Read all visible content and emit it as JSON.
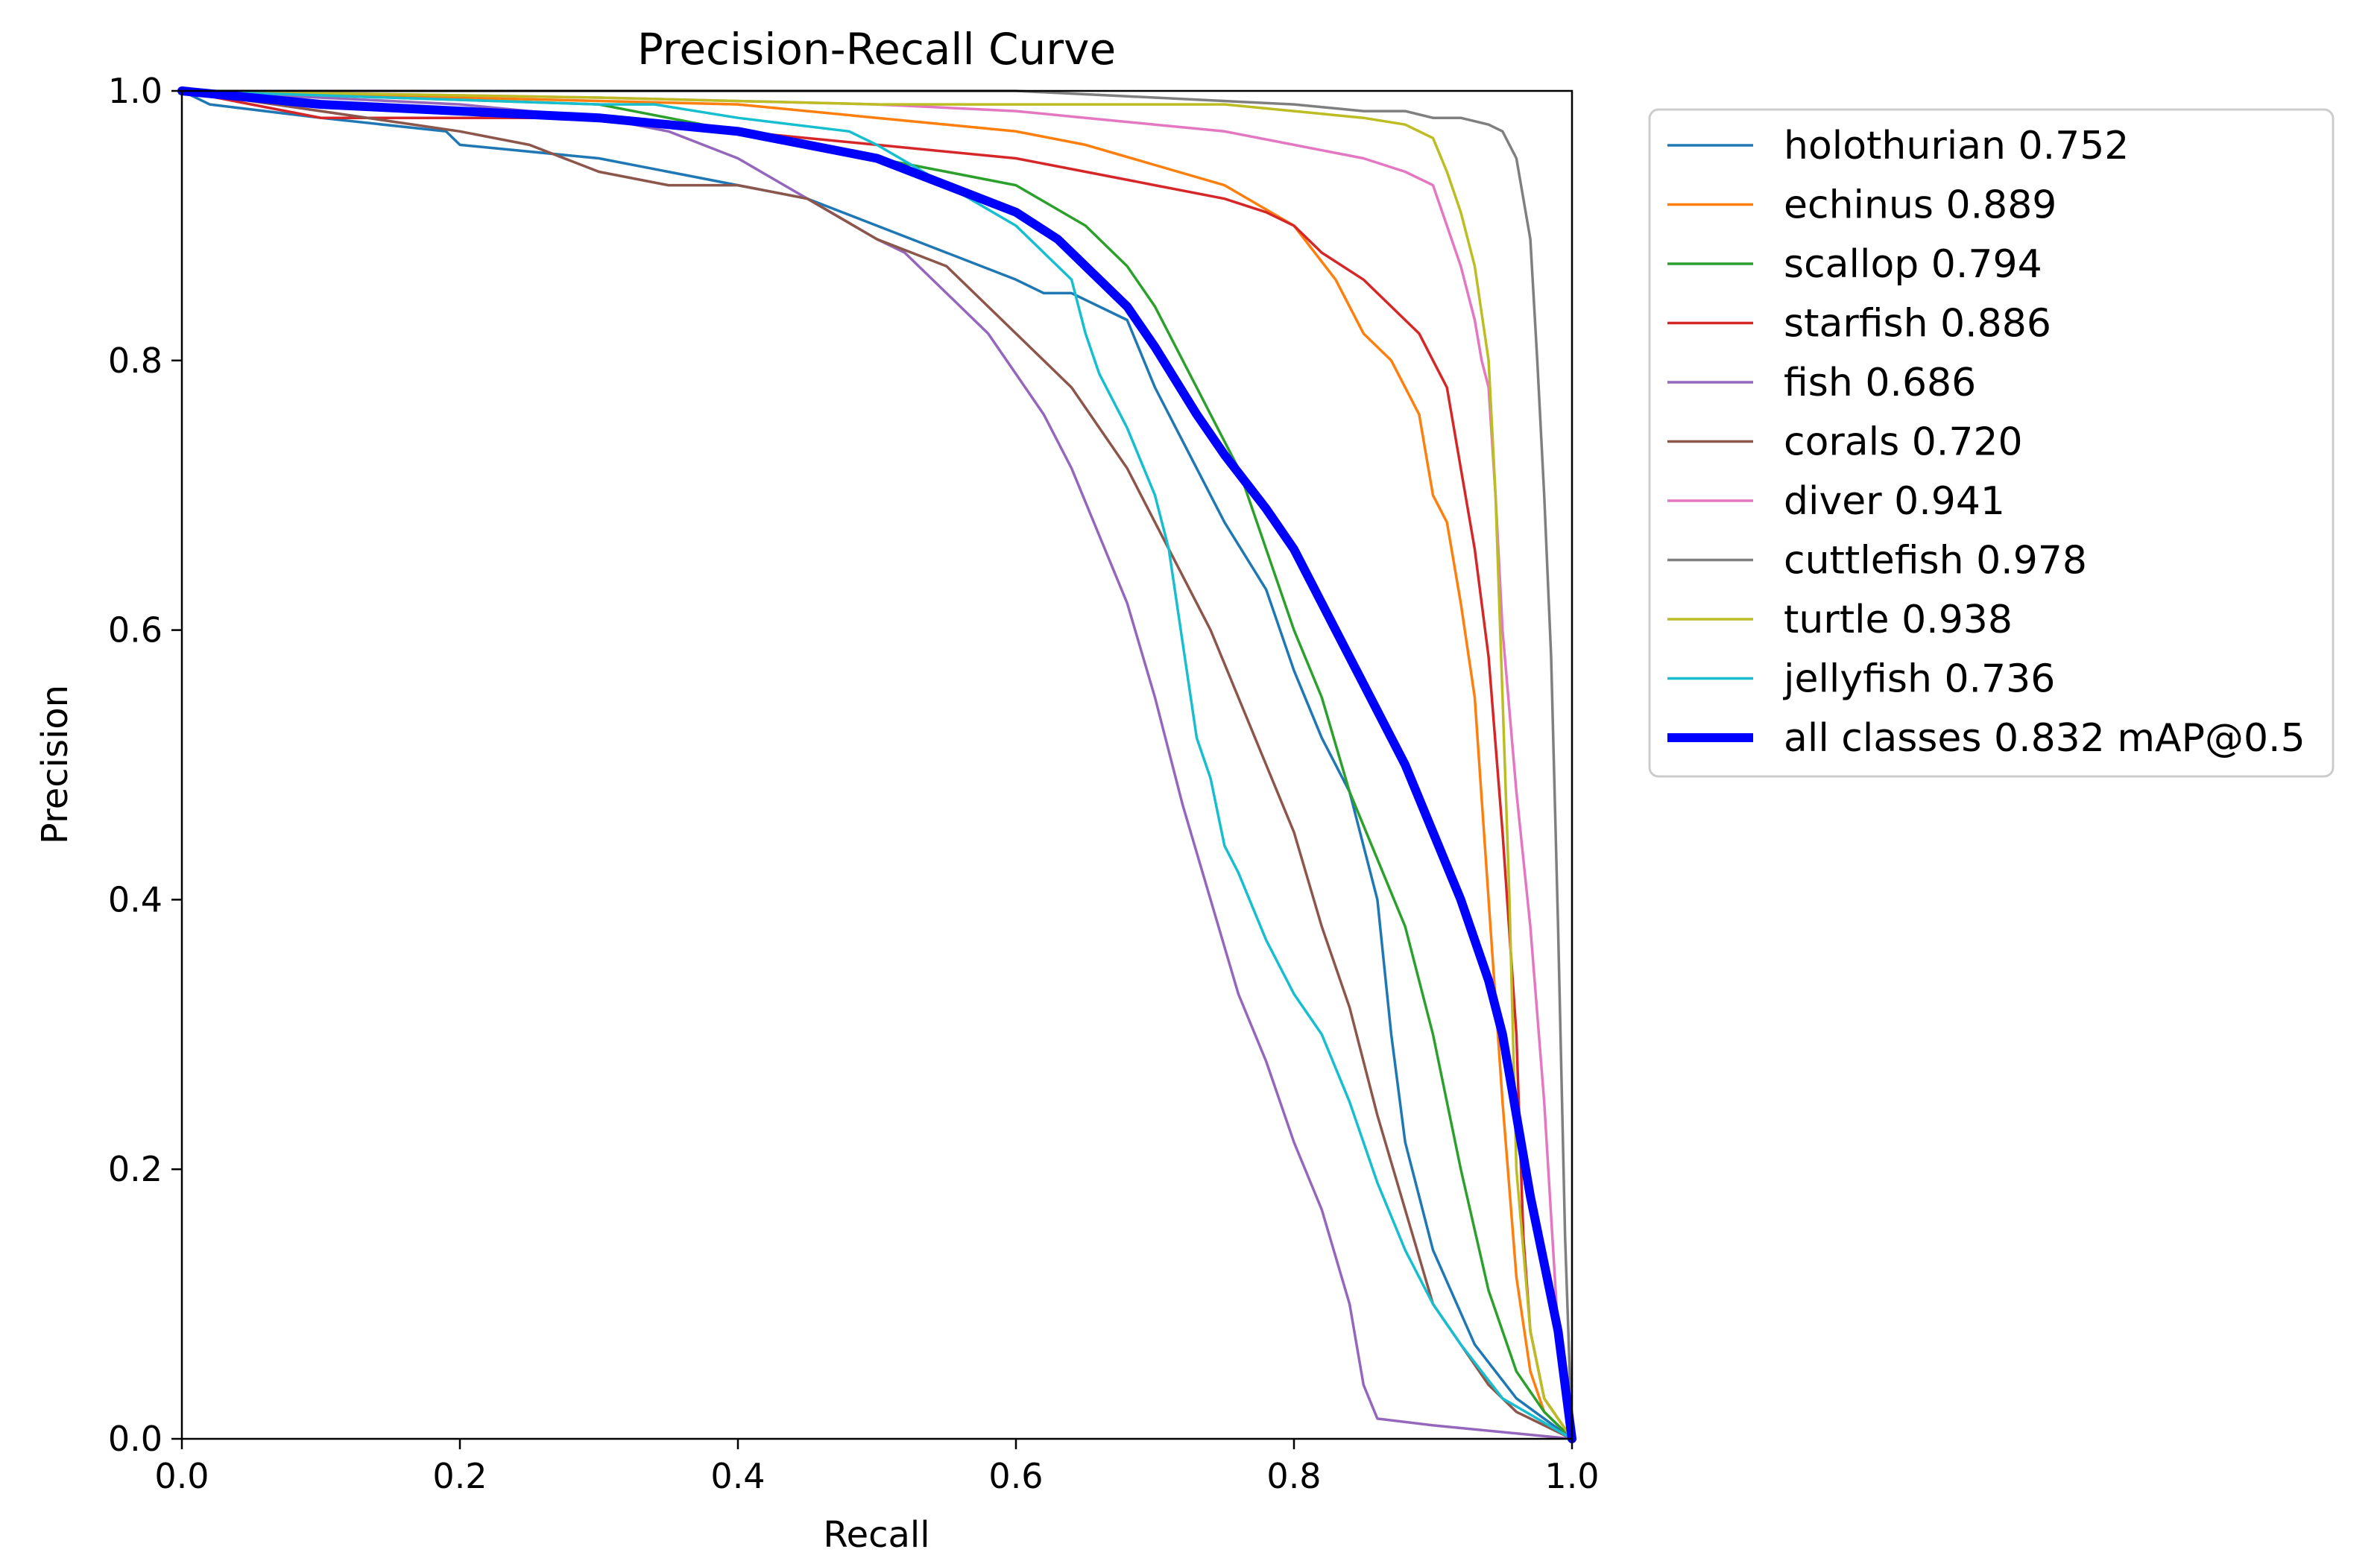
{
  "chart_data": {
    "type": "line",
    "title": "Precision-Recall Curve",
    "xlabel": "Recall",
    "ylabel": "Precision",
    "xlim": [
      0,
      1
    ],
    "ylim": [
      0,
      1
    ],
    "xticks": [
      "0.0",
      "0.2",
      "0.4",
      "0.6",
      "0.8",
      "1.0"
    ],
    "yticks": [
      "0.0",
      "0.2",
      "0.4",
      "0.6",
      "0.8",
      "1.0"
    ],
    "grid": false,
    "legend_position": "outside-upper-right",
    "series": [
      {
        "name": "holothurian 0.752",
        "color": "#1f77b4",
        "x": [
          0,
          0.02,
          0.1,
          0.19,
          0.2,
          0.3,
          0.4,
          0.45,
          0.5,
          0.55,
          0.6,
          0.62,
          0.64,
          0.68,
          0.7,
          0.72,
          0.75,
          0.78,
          0.8,
          0.82,
          0.84,
          0.86,
          0.87,
          0.88,
          0.9,
          0.93,
          0.96,
          0.98,
          1.0
        ],
        "y": [
          1.0,
          0.99,
          0.98,
          0.97,
          0.96,
          0.95,
          0.93,
          0.92,
          0.9,
          0.88,
          0.86,
          0.85,
          0.85,
          0.83,
          0.78,
          0.74,
          0.68,
          0.63,
          0.57,
          0.52,
          0.48,
          0.4,
          0.3,
          0.22,
          0.14,
          0.07,
          0.03,
          0.015,
          0.0
        ]
      },
      {
        "name": "echinus 0.889",
        "color": "#ff7f0e",
        "x": [
          0,
          0.2,
          0.4,
          0.5,
          0.6,
          0.65,
          0.7,
          0.75,
          0.8,
          0.83,
          0.85,
          0.87,
          0.89,
          0.9,
          0.91,
          0.92,
          0.93,
          0.94,
          0.95,
          0.96,
          0.97,
          0.98,
          1.0
        ],
        "y": [
          1.0,
          0.995,
          0.99,
          0.98,
          0.97,
          0.96,
          0.945,
          0.93,
          0.9,
          0.86,
          0.82,
          0.8,
          0.76,
          0.7,
          0.68,
          0.62,
          0.55,
          0.4,
          0.25,
          0.12,
          0.05,
          0.02,
          0.0
        ]
      },
      {
        "name": "scallop 0.794",
        "color": "#2ca02c",
        "x": [
          0,
          0.3,
          0.35,
          0.4,
          0.45,
          0.5,
          0.55,
          0.6,
          0.65,
          0.68,
          0.7,
          0.72,
          0.74,
          0.76,
          0.78,
          0.8,
          0.82,
          0.84,
          0.86,
          0.88,
          0.9,
          0.92,
          0.94,
          0.96,
          0.98,
          1.0
        ],
        "y": [
          1.0,
          0.99,
          0.98,
          0.97,
          0.96,
          0.95,
          0.94,
          0.93,
          0.9,
          0.87,
          0.84,
          0.8,
          0.76,
          0.72,
          0.66,
          0.6,
          0.55,
          0.48,
          0.43,
          0.38,
          0.3,
          0.2,
          0.11,
          0.05,
          0.02,
          0.0
        ]
      },
      {
        "name": "starfish 0.886",
        "color": "#d62728",
        "x": [
          0,
          0.1,
          0.3,
          0.4,
          0.5,
          0.6,
          0.65,
          0.7,
          0.75,
          0.78,
          0.8,
          0.82,
          0.85,
          0.87,
          0.89,
          0.9,
          0.91,
          0.92,
          0.93,
          0.94,
          0.95,
          0.96,
          0.965,
          0.97,
          0.98,
          1.0
        ],
        "y": [
          1.0,
          0.98,
          0.98,
          0.97,
          0.96,
          0.95,
          0.94,
          0.93,
          0.92,
          0.91,
          0.9,
          0.88,
          0.86,
          0.84,
          0.82,
          0.8,
          0.78,
          0.72,
          0.66,
          0.58,
          0.45,
          0.3,
          0.15,
          0.08,
          0.03,
          0.0
        ]
      },
      {
        "name": "fish 0.686",
        "color": "#9467bd",
        "x": [
          0,
          0.2,
          0.3,
          0.35,
          0.4,
          0.45,
          0.5,
          0.52,
          0.55,
          0.58,
          0.6,
          0.62,
          0.64,
          0.66,
          0.68,
          0.7,
          0.72,
          0.74,
          0.76,
          0.78,
          0.8,
          0.82,
          0.84,
          0.85,
          0.86,
          0.9,
          1.0
        ],
        "y": [
          1.0,
          0.99,
          0.98,
          0.97,
          0.95,
          0.92,
          0.89,
          0.88,
          0.85,
          0.82,
          0.79,
          0.76,
          0.72,
          0.67,
          0.62,
          0.55,
          0.47,
          0.4,
          0.33,
          0.28,
          0.22,
          0.17,
          0.1,
          0.04,
          0.015,
          0.01,
          0.0
        ]
      },
      {
        "name": "corals 0.720",
        "color": "#8c564b",
        "x": [
          0,
          0.2,
          0.25,
          0.3,
          0.35,
          0.4,
          0.45,
          0.5,
          0.55,
          0.6,
          0.62,
          0.64,
          0.66,
          0.68,
          0.7,
          0.72,
          0.74,
          0.76,
          0.78,
          0.8,
          0.82,
          0.84,
          0.86,
          0.88,
          0.9,
          0.92,
          0.94,
          0.96,
          1.0
        ],
        "y": [
          1.0,
          0.97,
          0.96,
          0.94,
          0.93,
          0.93,
          0.92,
          0.89,
          0.87,
          0.82,
          0.8,
          0.78,
          0.75,
          0.72,
          0.68,
          0.64,
          0.6,
          0.55,
          0.5,
          0.45,
          0.38,
          0.32,
          0.24,
          0.17,
          0.1,
          0.07,
          0.04,
          0.02,
          0.0
        ]
      },
      {
        "name": "diver 0.941",
        "color": "#e377c2",
        "x": [
          0,
          0.3,
          0.5,
          0.6,
          0.65,
          0.7,
          0.75,
          0.8,
          0.85,
          0.88,
          0.9,
          0.91,
          0.92,
          0.93,
          0.935,
          0.94,
          0.945,
          0.95,
          0.96,
          0.97,
          0.98,
          0.99,
          1.0
        ],
        "y": [
          1.0,
          0.995,
          0.99,
          0.985,
          0.98,
          0.975,
          0.97,
          0.96,
          0.95,
          0.94,
          0.93,
          0.9,
          0.87,
          0.83,
          0.8,
          0.78,
          0.7,
          0.6,
          0.48,
          0.38,
          0.25,
          0.08,
          0.0
        ]
      },
      {
        "name": "cuttlefish 0.978",
        "color": "#7f7f7f",
        "x": [
          0,
          0.2,
          0.4,
          0.6,
          0.7,
          0.8,
          0.85,
          0.88,
          0.9,
          0.92,
          0.94,
          0.95,
          0.96,
          0.97,
          0.975,
          0.98,
          0.985,
          0.99,
          0.995,
          1.0
        ],
        "y": [
          1.0,
          1.0,
          1.0,
          1.0,
          0.995,
          0.99,
          0.985,
          0.985,
          0.98,
          0.98,
          0.975,
          0.97,
          0.95,
          0.89,
          0.8,
          0.7,
          0.58,
          0.38,
          0.15,
          0.0
        ]
      },
      {
        "name": "turtle 0.938",
        "color": "#bcbd22",
        "x": [
          0,
          0.3,
          0.5,
          0.6,
          0.7,
          0.75,
          0.8,
          0.85,
          0.88,
          0.9,
          0.91,
          0.92,
          0.93,
          0.94,
          0.945,
          0.95,
          0.955,
          0.96,
          0.97,
          0.98,
          1.0
        ],
        "y": [
          1.0,
          0.995,
          0.99,
          0.99,
          0.99,
          0.99,
          0.985,
          0.98,
          0.975,
          0.965,
          0.94,
          0.91,
          0.87,
          0.8,
          0.7,
          0.55,
          0.4,
          0.2,
          0.08,
          0.03,
          0.0
        ]
      },
      {
        "name": "jellyfish 0.736",
        "color": "#17becf",
        "x": [
          0,
          0.3,
          0.34,
          0.4,
          0.48,
          0.5,
          0.55,
          0.6,
          0.62,
          0.64,
          0.65,
          0.66,
          0.68,
          0.7,
          0.71,
          0.72,
          0.73,
          0.74,
          0.75,
          0.76,
          0.78,
          0.8,
          0.82,
          0.84,
          0.86,
          0.88,
          0.9,
          0.92,
          0.95,
          1.0
        ],
        "y": [
          1.0,
          0.99,
          0.99,
          0.98,
          0.97,
          0.96,
          0.93,
          0.9,
          0.88,
          0.86,
          0.82,
          0.79,
          0.75,
          0.7,
          0.66,
          0.59,
          0.52,
          0.49,
          0.44,
          0.42,
          0.37,
          0.33,
          0.3,
          0.25,
          0.19,
          0.14,
          0.1,
          0.07,
          0.03,
          0.0
        ]
      },
      {
        "name": "all classes 0.832 mAP@0.5",
        "color": "#0000ff",
        "bold": true,
        "x": [
          0,
          0.1,
          0.2,
          0.3,
          0.4,
          0.45,
          0.5,
          0.55,
          0.6,
          0.63,
          0.65,
          0.68,
          0.7,
          0.73,
          0.75,
          0.78,
          0.8,
          0.83,
          0.85,
          0.88,
          0.9,
          0.92,
          0.94,
          0.95,
          0.96,
          0.97,
          0.98,
          0.99,
          1.0
        ],
        "y": [
          1.0,
          0.99,
          0.985,
          0.98,
          0.97,
          0.96,
          0.95,
          0.93,
          0.91,
          0.89,
          0.87,
          0.84,
          0.81,
          0.76,
          0.73,
          0.69,
          0.66,
          0.6,
          0.56,
          0.5,
          0.45,
          0.4,
          0.34,
          0.3,
          0.24,
          0.18,
          0.13,
          0.08,
          0.0
        ]
      }
    ]
  }
}
